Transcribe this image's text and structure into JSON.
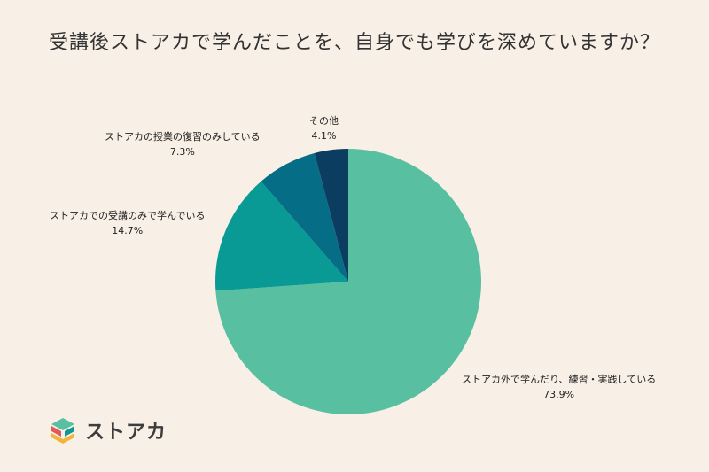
{
  "title": "受講後ストアカで学んだことを、自身でも学びを深めていますか？",
  "chart_data": {
    "type": "pie",
    "slices": [
      {
        "label": "ストアカ外で学んだり、練習・実践している",
        "value": 73.9,
        "display": "73.9%",
        "color": "#58c0a0"
      },
      {
        "label": "ストアカでの受講のみで学んでいる",
        "value": 14.7,
        "display": "14.7%",
        "color": "#0a9a96"
      },
      {
        "label": "ストアカの授業の復習のみしている",
        "value": 7.3,
        "display": "7.3%",
        "color": "#066d86"
      },
      {
        "label": "その他",
        "value": 4.1,
        "display": "4.1%",
        "color": "#0a3d60"
      }
    ]
  },
  "logo": {
    "text": "ストアカ"
  }
}
